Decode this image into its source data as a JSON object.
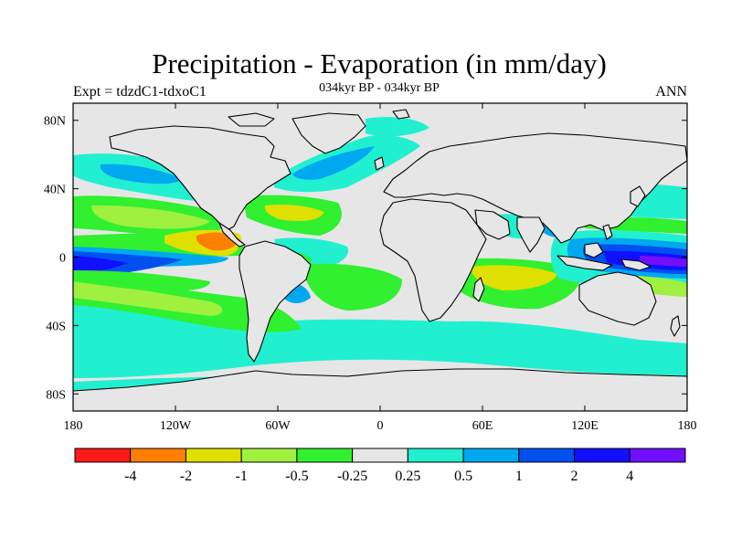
{
  "title": "Precipitation - Evaporation (in mm/day)",
  "subtitle_left": "Expt = tdzdC1-tdxoC1",
  "subtitle_center": "034kyr BP - 034kyr BP",
  "subtitle_right": "ANN",
  "map": {
    "lon_labels": [
      "180",
      "120W",
      "60W",
      "0",
      "60E",
      "120E",
      "180"
    ],
    "lon_values": [
      -180,
      -120,
      -60,
      0,
      60,
      120,
      180
    ],
    "lat_labels": [
      "80N",
      "40N",
      "0",
      "40S",
      "80S"
    ],
    "lat_values": [
      80,
      40,
      0,
      -40,
      -80
    ],
    "lat_range": [
      -90,
      90
    ],
    "lon_range": [
      -180,
      180
    ]
  },
  "colorbar": {
    "colors": [
      "#ff1a1a",
      "#ff8000",
      "#e0e000",
      "#a0f040",
      "#30f030",
      "#e6e6e6",
      "#20f0d0",
      "#00a8f0",
      "#0050f0",
      "#1010ff",
      "#7010ff"
    ],
    "labels": [
      "-4",
      "-2",
      "-1",
      "-0.5",
      "-0.25",
      "0.25",
      "0.5",
      "1",
      "2",
      "4"
    ]
  },
  "legend_colors": {
    "land": "#e6e6e6",
    "coast": "#000000"
  }
}
